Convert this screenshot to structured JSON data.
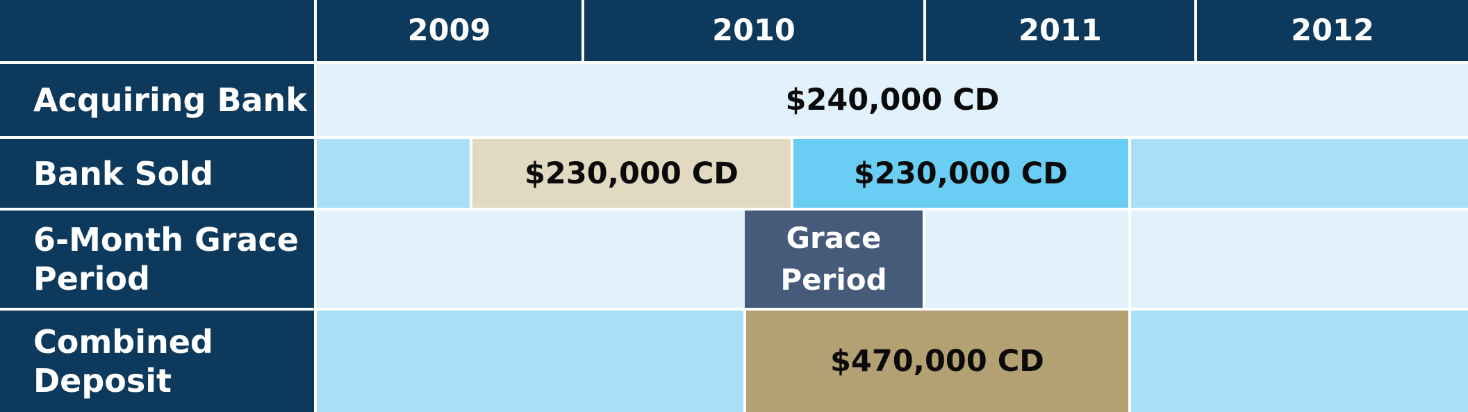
{
  "header": {
    "years": [
      "2009",
      "2010",
      "2011",
      "2012"
    ]
  },
  "rows": {
    "acquiring_bank": {
      "label": "Acquiring Bank",
      "bar": "$240,000 CD"
    },
    "bank_sold": {
      "label": "Bank Sold",
      "bar_before": "$230,000 CD",
      "bar_after": "$230,000 CD"
    },
    "grace_period": {
      "label_line1": "6-Month Grace",
      "label_line2": "Period",
      "bar_line1": "Grace",
      "bar_line2": "Period"
    },
    "combined_deposit": {
      "label_line1": "Combined",
      "label_line2": "Deposit",
      "bar": "$470,000 CD"
    }
  },
  "colors": {
    "navy": "#0d3a5c",
    "light_row": "#e1f2fc",
    "mid_row": "#aadff8",
    "tan_bar": "#e2d9c1",
    "cyan_bar": "#6acdf4",
    "slate_bar": "#465b79",
    "gold_bar": "#b4a173"
  }
}
